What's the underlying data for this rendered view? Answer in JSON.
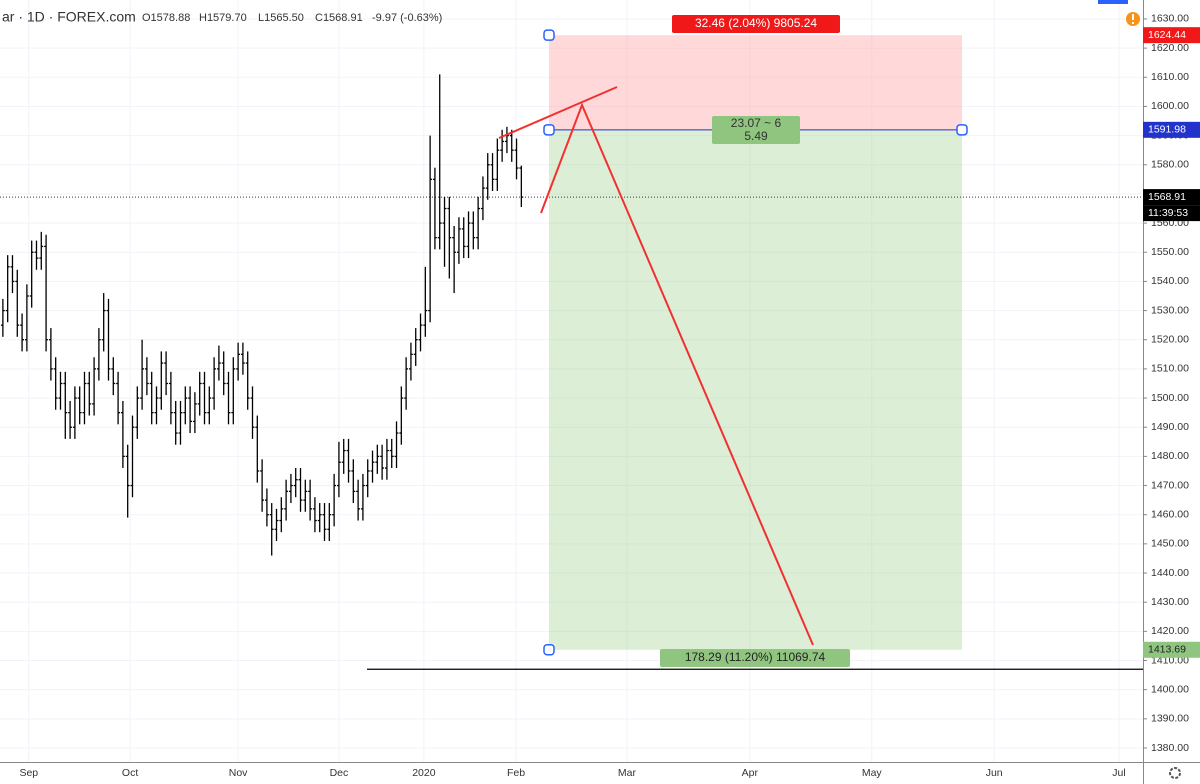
{
  "header": {
    "symbol": "ar · 1D · FOREX.com",
    "open": "O1578.88",
    "high": "H1579.70",
    "low": "L1565.50",
    "close": "C1568.91",
    "change": "-9.97 (-0.63%)"
  },
  "chart_data": {
    "type": "ohlc",
    "categories": [
      null,
      null,
      null,
      null,
      null,
      null,
      null,
      null,
      null,
      null,
      null,
      null,
      null,
      null,
      null,
      null,
      null,
      null,
      null,
      null,
      null,
      null,
      null,
      null,
      null,
      null,
      null,
      null,
      null,
      null,
      null,
      null,
      null,
      null,
      null,
      null,
      null,
      null,
      null,
      null,
      null,
      null,
      null,
      null,
      null,
      null,
      null,
      null,
      null,
      null,
      null,
      null,
      null,
      null,
      null,
      null,
      null,
      null,
      null,
      null,
      null,
      null,
      null,
      null,
      null,
      null,
      null,
      null,
      null,
      null,
      null,
      null,
      null,
      null,
      null,
      null,
      null,
      null,
      null,
      null,
      null,
      null,
      null,
      null,
      null,
      null,
      null,
      null,
      null,
      null,
      null,
      null,
      null,
      null,
      null,
      null,
      null,
      null,
      null,
      null,
      null,
      null,
      null,
      null,
      null,
      null,
      null,
      null,
      null
    ],
    "open": [
      1525,
      1530,
      1545,
      1540,
      1525,
      1520,
      1535,
      1550,
      1548,
      1552,
      1520,
      1510,
      1500,
      1505,
      1495,
      1490,
      1500,
      1495,
      1505,
      1498,
      1510,
      1520,
      1530,
      1510,
      1505,
      1495,
      1480,
      1470,
      1490,
      1500,
      1510,
      1505,
      1495,
      1500,
      1512,
      1505,
      1495,
      1488,
      1495,
      1500,
      1492,
      1498,
      1505,
      1495,
      1500,
      1510,
      1512,
      1505,
      1495,
      1510,
      1515,
      1512,
      1500,
      1490,
      1475,
      1465,
      1460,
      1455,
      1458,
      1462,
      1468,
      1470,
      1472,
      1465,
      1468,
      1462,
      1458,
      1460,
      1455,
      1460,
      1470,
      1478,
      1482,
      1475,
      1468,
      1462,
      1470,
      1475,
      1478,
      1480,
      1476,
      1482,
      1480,
      1488,
      1500,
      1510,
      1515,
      1520,
      1525,
      1530,
      1575,
      1555,
      1560,
      1565,
      1555,
      1550,
      1558,
      1552,
      1560,
      1555,
      1565,
      1572,
      1580,
      1575,
      1585,
      1588,
      1590,
      1585,
      1578.88
    ],
    "high": [
      1534,
      1549,
      1549,
      1544,
      1529,
      1539,
      1554,
      1554,
      1557,
      1556,
      1524,
      1514,
      1509,
      1509,
      1499,
      1504,
      1504,
      1509,
      1509,
      1514,
      1524,
      1536,
      1534,
      1514,
      1509,
      1499,
      1484,
      1494,
      1504,
      1520,
      1514,
      1509,
      1504,
      1516,
      1516,
      1509,
      1499,
      1499,
      1504,
      1504,
      1502,
      1509,
      1509,
      1504,
      1514,
      1518,
      1516,
      1509,
      1514,
      1519,
      1519,
      1516,
      1504,
      1494,
      1479,
      1469,
      1464,
      1462,
      1466,
      1472,
      1474,
      1476,
      1476,
      1472,
      1472,
      1466,
      1464,
      1464,
      1464,
      1474,
      1485,
      1486,
      1486,
      1479,
      1472,
      1474,
      1479,
      1482,
      1484,
      1484,
      1486,
      1486,
      1492,
      1504,
      1514,
      1519,
      1524,
      1529,
      1545,
      1590,
      1579,
      1611,
      1569,
      1569,
      1559,
      1562,
      1562,
      1564,
      1564,
      1569,
      1576,
      1584,
      1584,
      1589,
      1592,
      1593,
      1592,
      1589,
      1579.7
    ],
    "low": [
      1521,
      1526,
      1536,
      1521,
      1516,
      1516,
      1531,
      1544,
      1544,
      1516,
      1506,
      1496,
      1496,
      1486,
      1486,
      1486,
      1491,
      1491,
      1494,
      1494,
      1506,
      1516,
      1506,
      1501,
      1491,
      1476,
      1459,
      1466,
      1486,
      1496,
      1501,
      1491,
      1491,
      1496,
      1501,
      1491,
      1484,
      1484,
      1491,
      1488,
      1488,
      1494,
      1491,
      1491,
      1496,
      1506,
      1501,
      1491,
      1491,
      1506,
      1508,
      1496,
      1486,
      1471,
      1461,
      1456,
      1446,
      1451,
      1454,
      1458,
      1464,
      1466,
      1461,
      1461,
      1458,
      1454,
      1454,
      1451,
      1451,
      1456,
      1466,
      1474,
      1471,
      1464,
      1458,
      1458,
      1466,
      1471,
      1474,
      1472,
      1472,
      1476,
      1476,
      1484,
      1496,
      1506,
      1511,
      1516,
      1521,
      1526,
      1551,
      1551,
      1545,
      1541,
      1536,
      1546,
      1548,
      1548,
      1551,
      1551,
      1561,
      1568,
      1571,
      1571,
      1581,
      1584,
      1581,
      1575,
      1565.5
    ],
    "close": [
      1530,
      1545,
      1540,
      1525,
      1520,
      1535,
      1550,
      1548,
      1552,
      1520,
      1510,
      1500,
      1505,
      1495,
      1490,
      1500,
      1495,
      1505,
      1498,
      1510,
      1520,
      1530,
      1510,
      1505,
      1495,
      1480,
      1470,
      1490,
      1500,
      1510,
      1505,
      1495,
      1500,
      1512,
      1505,
      1495,
      1488,
      1495,
      1500,
      1492,
      1498,
      1505,
      1495,
      1500,
      1510,
      1512,
      1505,
      1495,
      1510,
      1515,
      1512,
      1500,
      1490,
      1475,
      1465,
      1460,
      1455,
      1458,
      1462,
      1468,
      1470,
      1472,
      1465,
      1468,
      1462,
      1458,
      1460,
      1455,
      1460,
      1470,
      1478,
      1482,
      1475,
      1468,
      1462,
      1470,
      1475,
      1478,
      1480,
      1476,
      1482,
      1480,
      1488,
      1500,
      1510,
      1515,
      1520,
      1525,
      1530,
      1575,
      1555,
      1560,
      1565,
      1555,
      1550,
      1558,
      1552,
      1560,
      1555,
      1565,
      1572,
      1580,
      1575,
      1585,
      1588,
      1590,
      1585,
      1578.88,
      1568.91
    ],
    "color": "#000000",
    "xlim": [
      -0.6,
      237.5
    ],
    "xticks": [
      {
        "value": 5.4,
        "label": "Sep"
      },
      {
        "value": 26.5,
        "label": "Oct"
      },
      {
        "value": 49,
        "label": "Nov"
      },
      {
        "value": 70,
        "label": "Dec"
      },
      {
        "value": 87.7,
        "label": "2020"
      },
      {
        "value": 106.9,
        "label": "Feb"
      },
      {
        "value": 130,
        "label": "Mar"
      },
      {
        "value": 155.6,
        "label": "Apr"
      },
      {
        "value": 181,
        "label": "May"
      },
      {
        "value": 206.5,
        "label": "Jun"
      },
      {
        "value": 232.5,
        "label": "Jul"
      }
    ],
    "ylim": [
      1375.2,
      1636.5
    ],
    "yticks": [
      {
        "value": 1380,
        "label": "1380.00"
      },
      {
        "value": 1390,
        "label": "1390.00"
      },
      {
        "value": 1400,
        "label": "1400.00"
      },
      {
        "value": 1410,
        "label": "1410.00"
      },
      {
        "value": 1420,
        "label": "1420.00"
      },
      {
        "value": 1430,
        "label": "1430.00"
      },
      {
        "value": 1440,
        "label": "1440.00"
      },
      {
        "value": 1450,
        "label": "1450.00"
      },
      {
        "value": 1460,
        "label": "1460.00"
      },
      {
        "value": 1470,
        "label": "1470.00"
      },
      {
        "value": 1480,
        "label": "1480.00"
      },
      {
        "value": 1490,
        "label": "1490.00"
      },
      {
        "value": 1500,
        "label": "1500.00"
      },
      {
        "value": 1510,
        "label": "1510.00"
      },
      {
        "value": 1520,
        "label": "1520.00"
      },
      {
        "value": 1530,
        "label": "1530.00"
      },
      {
        "value": 1540,
        "label": "1540.00"
      },
      {
        "value": 1550,
        "label": "1550.00"
      },
      {
        "value": 1560,
        "label": "1560.00"
      },
      {
        "value": 1570,
        "label": "1570.00"
      },
      {
        "value": 1580,
        "label": "1580.00"
      },
      {
        "value": 1590,
        "label": "1590.00"
      },
      {
        "value": 1600,
        "label": "1600.00"
      },
      {
        "value": 1610,
        "label": "1610.00"
      },
      {
        "value": 1620,
        "label": "1620.00"
      },
      {
        "value": 1630,
        "label": "1630.00"
      }
    ],
    "grid": true,
    "position": {
      "entry": 1591.98,
      "stop": 1624.44,
      "target": 1413.69,
      "stop_label": "32.46 (2.04%) 9805.24",
      "ratio_label": "23.07 ~ 6",
      "ratio_label_2": "5.49",
      "target_label": "178.29 (11.20%) 11069.74"
    },
    "hline": 1407,
    "countdown": "11:39:53"
  }
}
